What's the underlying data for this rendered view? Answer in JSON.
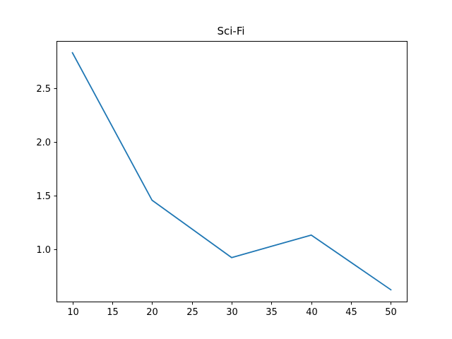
{
  "chart_data": {
    "type": "line",
    "title": "Sci-Fi",
    "xlabel": "",
    "ylabel": "",
    "x": [
      10,
      20,
      30,
      40,
      50
    ],
    "series": [
      {
        "values": [
          2.83,
          1.455,
          0.92,
          1.13,
          0.62
        ],
        "color": "#1f77b4"
      }
    ],
    "xlim": [
      8,
      52
    ],
    "ylim": [
      0.51,
      2.94
    ],
    "xticks": [
      10,
      15,
      20,
      25,
      30,
      35,
      40,
      45,
      50
    ],
    "xtick_labels": [
      "10",
      "15",
      "20",
      "25",
      "30",
      "35",
      "40",
      "45",
      "50"
    ],
    "yticks": [
      1.0,
      1.5,
      2.0,
      2.5
    ],
    "ytick_labels": [
      "1.0",
      "1.5",
      "2.0",
      "2.5"
    ],
    "grid": false,
    "legend": "none"
  }
}
